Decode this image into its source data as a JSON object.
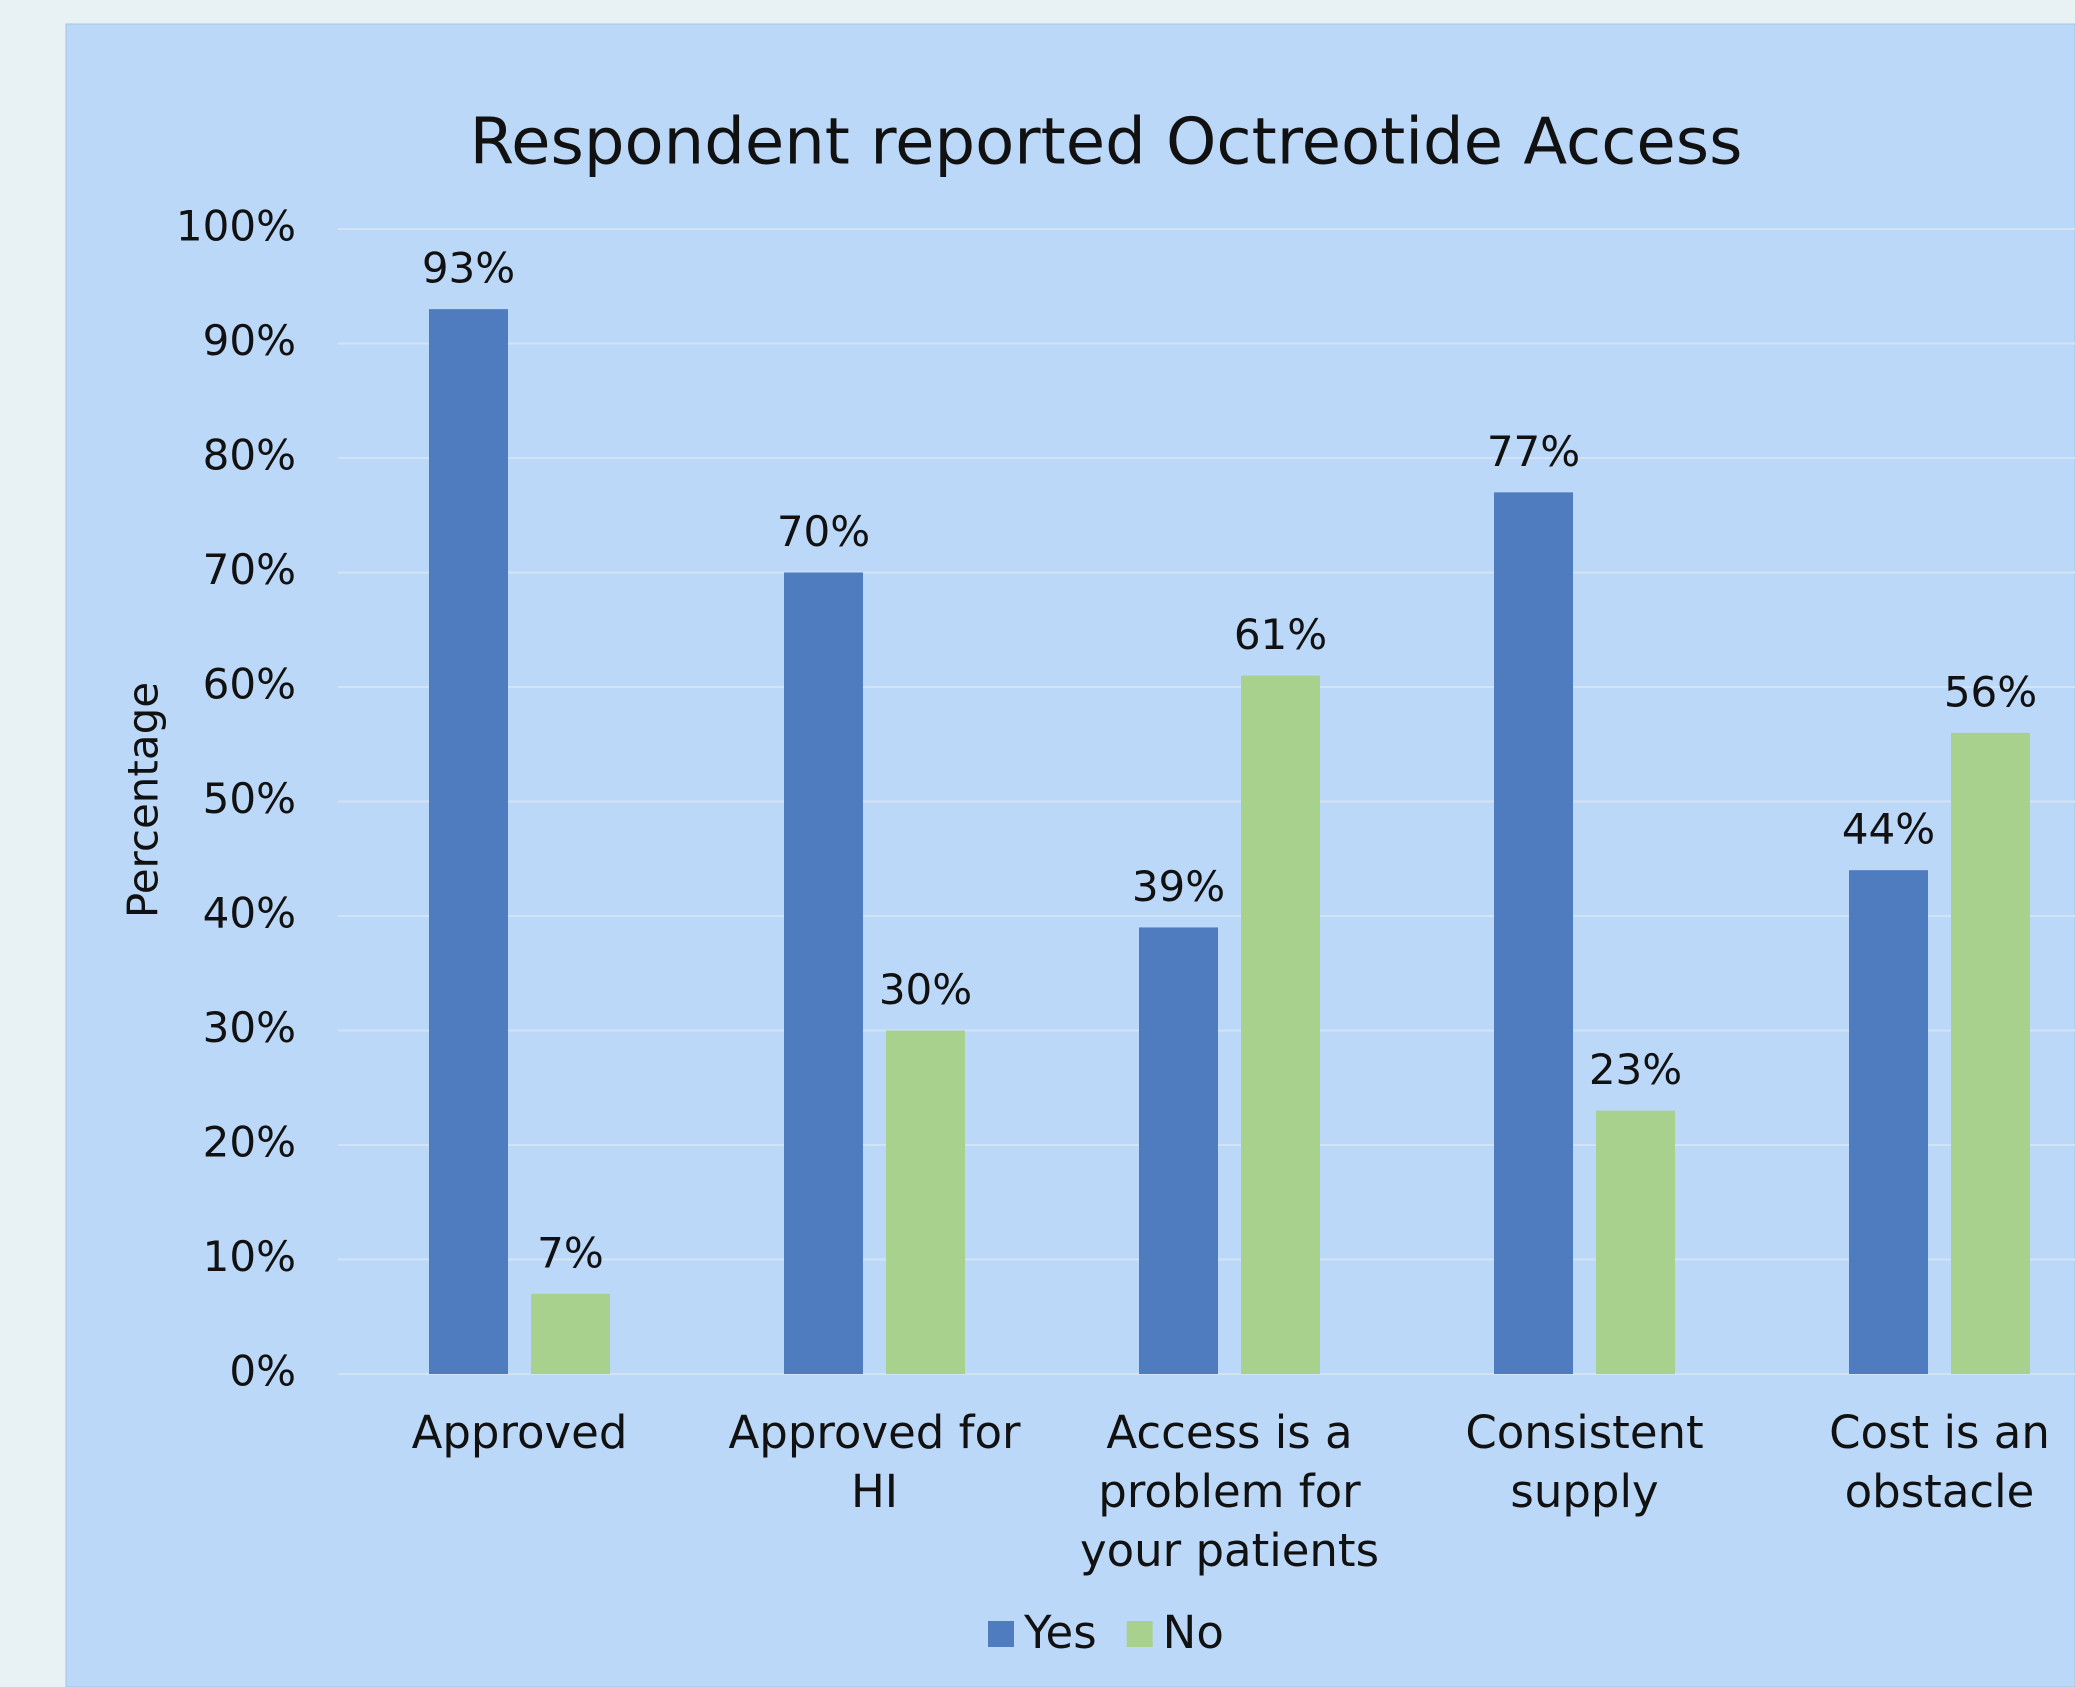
{
  "chart_data": {
    "type": "bar",
    "title": "Respondent reported Octreotide Access",
    "y_label": "Percentage",
    "categories": [
      "Approved",
      "Approved for HI",
      "Access is a problem for your patients",
      "Consistent supply",
      "Cost is an obstacle"
    ],
    "series": [
      {
        "name": "Yes",
        "color": "#4f7bbf",
        "values": [
          93,
          70,
          39,
          77,
          44
        ],
        "value_labels": [
          "93%",
          "70%",
          "39%",
          "77%",
          "44%"
        ]
      },
      {
        "name": "No",
        "color": "#a9d18e",
        "values": [
          7,
          30,
          61,
          23,
          56
        ],
        "value_labels": [
          "7%",
          "30%",
          "61%",
          "23%",
          "56%"
        ]
      }
    ],
    "ylim": [
      0,
      100
    ],
    "yticks": [
      {
        "value": 0,
        "label": "0%"
      },
      {
        "value": 10,
        "label": "10%"
      },
      {
        "value": 20,
        "label": "20%"
      },
      {
        "value": 30,
        "label": "30%"
      },
      {
        "value": 40,
        "label": "40%"
      },
      {
        "value": 50,
        "label": "50%"
      },
      {
        "value": 60,
        "label": "60%"
      },
      {
        "value": 70,
        "label": "70%"
      },
      {
        "value": 80,
        "label": "80%"
      },
      {
        "value": 90,
        "label": "90%"
      },
      {
        "value": 100,
        "label": "100%"
      }
    ],
    "grid": true,
    "legend": "bottom"
  }
}
